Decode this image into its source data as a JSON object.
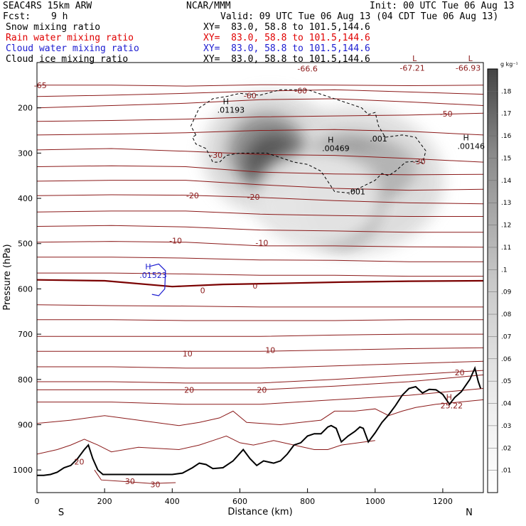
{
  "header": {
    "model": "SEAC4RS 15km ARW",
    "org": "NCAR/MMM",
    "init": "Init: 00 UTC Tue 06 Aug 13",
    "fcst_label": "Fcst:",
    "fcst_value": "9 h",
    "valid": "Valid: 09 UTC Tue 06 Aug 13 (04 CDT Tue 06 Aug 13)",
    "fields": [
      {
        "name": "Snow mixing ratio",
        "xy": "XY=  83.0, 58.8 to 101.5,144.6",
        "color": "#000000"
      },
      {
        "name": "Rain water mixing ratio",
        "xy": "XY=  83.0, 58.8 to 101.5,144.6",
        "color": "#e00000"
      },
      {
        "name": "Cloud water mixing ratio",
        "xy": "XY=  83.0, 58.8 to 101.5,144.6",
        "color": "#1c1cd0"
      },
      {
        "name": "Cloud ice mixing ratio",
        "xy": "XY=  83.0, 58.8 to 101.5,144.6",
        "color": "#000000"
      }
    ]
  },
  "chart_data": {
    "type": "cross-section",
    "xlabel": "Distance (km)",
    "ylabel": "Pressure (hPa)",
    "xlim": [
      0,
      1320
    ],
    "ylim": [
      1050,
      100
    ],
    "x_ticks": [
      0,
      200,
      400,
      600,
      800,
      1000,
      1200
    ],
    "y_ticks": [
      200,
      300,
      400,
      500,
      600,
      700,
      800,
      900,
      1000
    ],
    "x_end_labels": {
      "left": "S",
      "right": "N"
    },
    "colorbar": {
      "unit": "g kg⁻¹",
      "levels": [
        ".01",
        ".02",
        ".03",
        ".04",
        ".05",
        ".06",
        ".07",
        ".08",
        ".09",
        ".1",
        ".11",
        ".12",
        ".13",
        ".14",
        ".15",
        ".16",
        ".17",
        ".18"
      ]
    },
    "temperature_labels": [
      {
        "text": "-65",
        "x": 10,
        "p": 150
      },
      {
        "text": "-66.6",
        "x": 800,
        "p": 113
      },
      {
        "text": "-67.21",
        "x": 1110,
        "p": 112
      },
      {
        "text": "-66.93",
        "x": 1275,
        "p": 112
      },
      {
        "text": "-60",
        "x": 630,
        "p": 173
      },
      {
        "text": "-60",
        "x": 780,
        "p": 162
      },
      {
        "text": "-50",
        "x": 1210,
        "p": 213
      },
      {
        "text": "-30",
        "x": 530,
        "p": 304
      },
      {
        "text": "-30",
        "x": 1130,
        "p": 318
      },
      {
        "text": "-20",
        "x": 460,
        "p": 394
      },
      {
        "text": "-20",
        "x": 640,
        "p": 397
      },
      {
        "text": "-10",
        "x": 410,
        "p": 493
      },
      {
        "text": "-10",
        "x": 665,
        "p": 498
      },
      {
        "text": "0",
        "x": 490,
        "p": 603
      },
      {
        "text": "0",
        "x": 645,
        "p": 593
      },
      {
        "text": "10",
        "x": 445,
        "p": 743
      },
      {
        "text": "10",
        "x": 690,
        "p": 735
      },
      {
        "text": "20",
        "x": 450,
        "p": 823
      },
      {
        "text": "20",
        "x": 665,
        "p": 823
      },
      {
        "text": "20",
        "x": 1250,
        "p": 785
      },
      {
        "text": "20",
        "x": 125,
        "p": 982
      },
      {
        "text": "30",
        "x": 275,
        "p": 1025
      },
      {
        "text": "30",
        "x": 350,
        "p": 1032
      }
    ],
    "extrema": [
      {
        "kind": "H",
        "text": ".01193",
        "x": 550,
        "p": 195,
        "color": "#000000"
      },
      {
        "kind": "H",
        "text": ".00469",
        "x": 860,
        "p": 280,
        "color": "#000000"
      },
      {
        "kind": "H",
        "text": ".00146",
        "x": 1260,
        "p": 275,
        "color": "#000000"
      },
      {
        "kind": "H",
        "text": ".01523",
        "x": 320,
        "p": 560,
        "color": "#1c1cd0"
      },
      {
        "kind": "H",
        "text": "25.22",
        "x": 1210,
        "p": 848,
        "color": "#8b1a1a"
      },
      {
        "kind": "L",
        "text": "",
        "x": 1110,
        "p": 100,
        "color": "#8b1a1a"
      },
      {
        "kind": "L",
        "text": "",
        "x": 1275,
        "p": 100,
        "color": "#8b1a1a"
      }
    ],
    "ice_labels": [
      {
        "text": ".001",
        "x": 1010,
        "p": 268
      },
      {
        "text": ".001",
        "x": 945,
        "p": 385
      }
    ],
    "snow_max": 0.18,
    "terrain": [
      [
        0,
        1012
      ],
      [
        20,
        1012
      ],
      [
        40,
        1010
      ],
      [
        60,
        1005
      ],
      [
        80,
        995
      ],
      [
        100,
        990
      ],
      [
        120,
        975
      ],
      [
        140,
        955
      ],
      [
        152,
        945
      ],
      [
        165,
        975
      ],
      [
        180,
        1000
      ],
      [
        195,
        1010
      ],
      [
        250,
        1010
      ],
      [
        300,
        1010
      ],
      [
        360,
        1010
      ],
      [
        400,
        1010
      ],
      [
        430,
        1007
      ],
      [
        460,
        995
      ],
      [
        480,
        985
      ],
      [
        500,
        988
      ],
      [
        520,
        997
      ],
      [
        550,
        995
      ],
      [
        580,
        980
      ],
      [
        610,
        955
      ],
      [
        630,
        975
      ],
      [
        650,
        990
      ],
      [
        670,
        980
      ],
      [
        700,
        985
      ],
      [
        720,
        980
      ],
      [
        740,
        965
      ],
      [
        760,
        945
      ],
      [
        780,
        940
      ],
      [
        800,
        925
      ],
      [
        820,
        920
      ],
      [
        840,
        920
      ],
      [
        860,
        905
      ],
      [
        870,
        902
      ],
      [
        885,
        908
      ],
      [
        900,
        938
      ],
      [
        920,
        925
      ],
      [
        940,
        915
      ],
      [
        955,
        905
      ],
      [
        965,
        908
      ],
      [
        980,
        938
      ],
      [
        1000,
        918
      ],
      [
        1020,
        895
      ],
      [
        1040,
        878
      ],
      [
        1060,
        858
      ],
      [
        1080,
        835
      ],
      [
        1100,
        820
      ],
      [
        1120,
        816
      ],
      [
        1140,
        830
      ],
      [
        1160,
        822
      ],
      [
        1180,
        823
      ],
      [
        1200,
        833
      ],
      [
        1220,
        855
      ],
      [
        1235,
        840
      ],
      [
        1255,
        827
      ],
      [
        1280,
        800
      ],
      [
        1295,
        775
      ],
      [
        1305,
        805
      ],
      [
        1312,
        820
      ]
    ]
  }
}
